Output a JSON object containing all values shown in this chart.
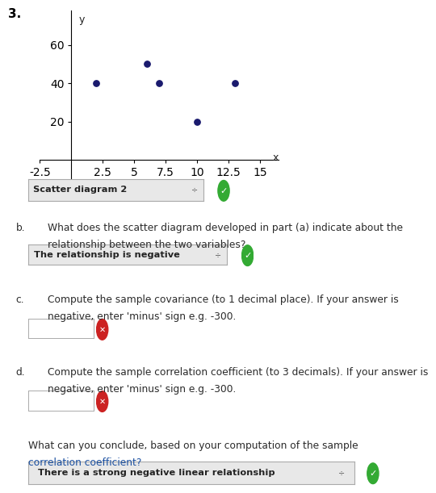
{
  "title_number": "3.",
  "scatter_x": [
    2,
    6,
    7,
    10,
    13
  ],
  "scatter_y": [
    40,
    50,
    40,
    20,
    40
  ],
  "dot_color": "#1a1a6e",
  "dot_size": 28,
  "xlim": [
    -2.5,
    16.5
  ],
  "ylim": [
    -12,
    78
  ],
  "xticks": [
    -2.5,
    2.5,
    5,
    7.5,
    10,
    12.5,
    15
  ],
  "yticks": [
    20,
    40,
    60
  ],
  "xlabel": "x",
  "ylabel": "y",
  "tick_fontsize": 7.5,
  "bg_color": "#ffffff",
  "part_a_answer": "Scatter diagram 2",
  "part_b_label": "b.",
  "part_b_text1": "What does the scatter diagram developed in part (a) indicate about the",
  "part_b_text2": "relationship between the two variables?",
  "part_b_answer": "The relationship is negative",
  "part_c_label": "c.",
  "part_c_text1": "Compute the sample covariance (to 1 decimal place). If your answer is",
  "part_c_text2": "negative, enter 'minus' sign e.g. -300.",
  "part_d_label": "d.",
  "part_d_text1": "Compute the sample correlation coefficient (to 3 decimals). If your answer is",
  "part_d_text2": "negative, enter 'minus' sign e.g. -300.",
  "part_e_text1": "What can you conclude, based on your computation of the sample",
  "part_e_text2": "correlation coefficient?",
  "part_e_answer": "There is a strong negative linear relationship",
  "text_color": "#2a2a2a",
  "label_color": "#222222",
  "font_size_text": 8.8,
  "font_size_small": 8.0,
  "dropdown_bg": "#e8e8e8",
  "dropdown_border": "#aaaaaa",
  "input_bg": "#ffffff",
  "check_color": "#33aa33",
  "x_color": "#cc2222"
}
